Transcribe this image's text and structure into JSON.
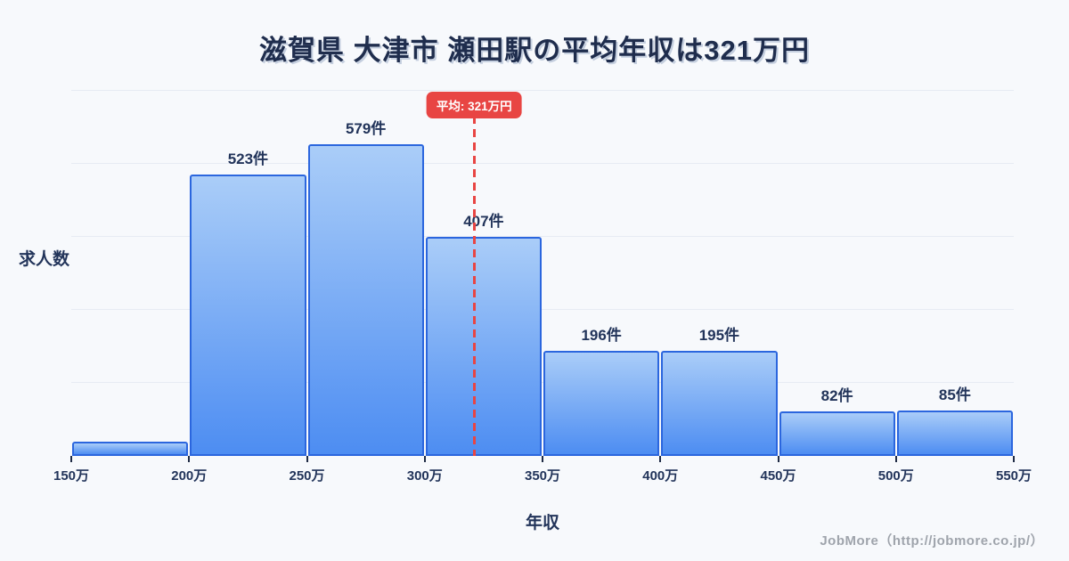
{
  "footer": "JobMore（http://jobmore.co.jp/）",
  "colors": {
    "background": "#f7f9fc",
    "title_text": "#1f2d4d",
    "bar_border": "#2b66de",
    "bar_fill_top": "#aacdf8",
    "bar_fill_bottom": "#4d8df2",
    "gridline": "#e7ebf3",
    "average_red": "#e84543",
    "footer_text": "#9fa4ac"
  },
  "chart_data": {
    "type": "bar",
    "subtype": "histogram",
    "title": "滋賀県 大津市 瀬田駅の平均年収は321万円",
    "xlabel": "年収",
    "ylabel": "求人数",
    "x_min": 150,
    "x_max": 550,
    "x_unit": "万円",
    "x_tick_labels": [
      "150万",
      "200万",
      "250万",
      "300万",
      "350万",
      "400万",
      "450万",
      "500万",
      "550万"
    ],
    "grid": "horizontal",
    "gridline_count": 5,
    "legend": "none",
    "average": {
      "value": 321,
      "label": "平均: 321万円"
    },
    "bins": [
      {
        "range": "150万-200万",
        "count": 26,
        "label": ""
      },
      {
        "range": "200万-250万",
        "count": 523,
        "label": "523件"
      },
      {
        "range": "250万-300万",
        "count": 579,
        "label": "579件"
      },
      {
        "range": "300万-350万",
        "count": 407,
        "label": "407件"
      },
      {
        "range": "350万-400万",
        "count": 196,
        "label": "196件"
      },
      {
        "range": "400万-450万",
        "count": 195,
        "label": "195件"
      },
      {
        "range": "450万-500万",
        "count": 82,
        "label": "82件"
      },
      {
        "range": "500万-550万",
        "count": 85,
        "label": "85件"
      }
    ]
  }
}
